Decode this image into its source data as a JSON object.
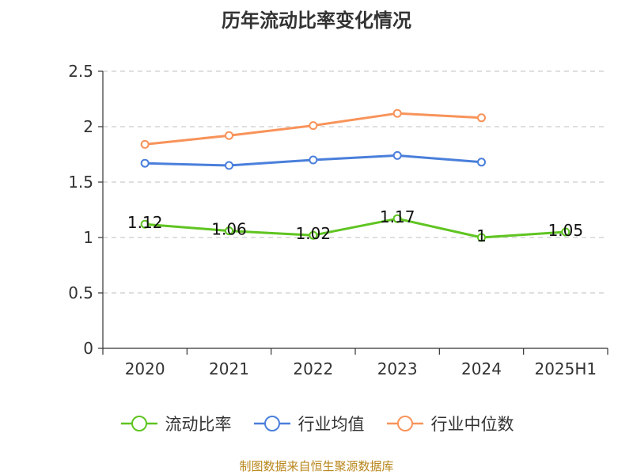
{
  "chart_data": {
    "type": "line",
    "title": "历年流动比率变化情况",
    "categories": [
      "2020",
      "2021",
      "2022",
      "2023",
      "2024",
      "2025H1"
    ],
    "y_ticks": [
      "0",
      "0.5",
      "1",
      "1.5",
      "2",
      "2.5"
    ],
    "ylim": [
      0,
      2.5
    ],
    "grid": true,
    "legend_position": "bottom",
    "series": [
      {
        "name": "流动比率",
        "color": "#5fc421",
        "values": [
          1.12,
          1.06,
          1.02,
          1.17,
          1.0,
          1.05
        ],
        "labels": [
          "1.12",
          "1.06",
          "1.02",
          "1.17",
          "1",
          "1.05"
        ]
      },
      {
        "name": "行业均值",
        "color": "#4a7fdb",
        "values": [
          1.67,
          1.65,
          1.7,
          1.74,
          1.68,
          null
        ]
      },
      {
        "name": "行业中位数",
        "color": "#f8935a",
        "values": [
          1.84,
          1.92,
          2.01,
          2.12,
          2.08,
          null
        ]
      }
    ],
    "source": "制图数据来自恒生聚源数据库",
    "source_color": "#b8861b"
  }
}
